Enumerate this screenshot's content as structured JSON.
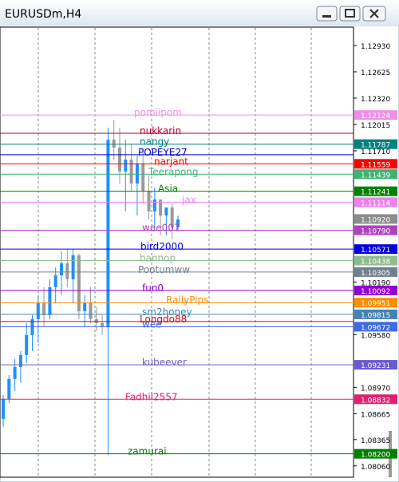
{
  "chart_data": {
    "type": "candlestick",
    "title": "EURUSDm,H4",
    "candles": {
      "open": [
        1.08605,
        1.08836,
        1.09067,
        1.09205,
        1.09344,
        1.09575,
        1.0976,
        1.09945,
        1.09806,
        1.1013,
        1.10268,
        1.10407,
        1.10222,
        1.10499,
        1.09852,
        1.09945,
        1.0976,
        1.09714,
        1.09667,
        1.11839,
        1.11747,
        1.1147,
        1.11608,
        1.11331,
        1.11562,
        1.11239,
        1.11008,
        1.11146,
        1.10961,
        1.11054,
        1.10823
      ],
      "high": [
        1.08882,
        1.09113,
        1.09299,
        1.0939,
        1.09714,
        1.09806,
        1.10037,
        1.1013,
        1.10222,
        1.10361,
        1.10546,
        1.10573,
        1.10573,
        1.10518,
        1.10037,
        1.1013,
        1.09899,
        1.09806,
        1.11978,
        1.1207,
        1.11978,
        1.11839,
        1.11793,
        1.11655,
        1.11747,
        1.11424,
        1.11285,
        1.11146,
        1.11054,
        1.111,
        1.10961
      ],
      "low": [
        1.08512,
        1.08789,
        1.08928,
        1.09021,
        1.09252,
        1.0939,
        1.09483,
        1.09667,
        1.0976,
        1.09945,
        1.10037,
        1.1013,
        1.09945,
        1.0976,
        1.09667,
        1.09714,
        1.09621,
        1.09575,
        1.08189,
        1.11608,
        1.11331,
        1.11008,
        1.11239,
        1.10961,
        1.111,
        1.10915,
        1.10777,
        1.1073,
        1.1073,
        1.10684,
        1.10777
      ],
      "close": [
        1.08836,
        1.09067,
        1.09205,
        1.09344,
        1.09575,
        1.0976,
        1.09945,
        1.09806,
        1.1013,
        1.10268,
        1.10407,
        1.10222,
        1.10499,
        1.09852,
        1.09945,
        1.0976,
        1.09714,
        1.09667,
        1.11839,
        1.11747,
        1.1147,
        1.11608,
        1.11331,
        1.11562,
        1.11239,
        1.11008,
        1.11146,
        1.10961,
        1.11054,
        1.10823,
        1.10915
      ]
    },
    "bull_color": "#1e90ff",
    "bear_color": "#9a9a9a",
    "ylim": [
      1.0791,
      1.13161
    ],
    "yticks": [
      {
        "value": 1.1293,
        "label": "1.12930"
      },
      {
        "value": 1.12625,
        "label": "1.12625"
      },
      {
        "value": 1.1232,
        "label": "1.12320"
      },
      {
        "value": 1.12015,
        "label": "1.12015"
      },
      {
        "value": 1.1171,
        "label": "1.11710"
      },
      {
        "value": 1.1019,
        "label": "1.10190"
      },
      {
        "value": 1.0958,
        "label": "1.09580"
      },
      {
        "value": 1.0897,
        "label": "1.08970"
      },
      {
        "value": 1.08665,
        "label": "1.08665"
      },
      {
        "value": 1.08365,
        "label": "1.08365"
      },
      {
        "value": 1.0806,
        "label": "1.08060"
      }
    ],
    "bid": {
      "value": 1.1092,
      "label": "1.10920",
      "color": "#8c8c8c"
    },
    "levels": [
      {
        "name": "pomiipom",
        "value": 1.12124,
        "color": "#ee90e6",
        "tag": true
      },
      {
        "name": "nukkarin",
        "value": 1.11913,
        "color": "#b0002a",
        "tag": false
      },
      {
        "name": "nangy",
        "value": 1.11787,
        "color": "#008080",
        "tag": true
      },
      {
        "name": "POPEYE27",
        "value": 1.11664,
        "color": "#0000c8",
        "tag": false
      },
      {
        "name": "narjant",
        "value": 1.11559,
        "color": "#ff0000",
        "tag": true
      },
      {
        "name": "Teerapong",
        "value": 1.11439,
        "color": "#3cb371",
        "tag": true
      },
      {
        "name": "Asia",
        "value": 1.11241,
        "color": "#008000",
        "tag": true
      },
      {
        "name": "jax",
        "value": 1.11114,
        "color": "#ee82ee",
        "tag": true
      },
      {
        "name": "wee007",
        "value": 1.1079,
        "value_label": "1.10790",
        "color": "#b040c0",
        "tag": true
      },
      {
        "name": "bird2000",
        "value": 1.10571,
        "color": "#0000e0",
        "tag": true
      },
      {
        "name": "bannop",
        "value": 1.10438,
        "color": "#8fbc8f",
        "tag": true
      },
      {
        "name": "Pootumww",
        "value": 1.10305,
        "color": "#708090",
        "tag": true
      },
      {
        "name": "fun0",
        "value": 1.10092,
        "color": "#9400d3",
        "tag": true
      },
      {
        "name": "RallyPips",
        "value": 1.09951,
        "color": "#ff8c00",
        "tag": true
      },
      {
        "name": "sm2honey",
        "value": 1.09815,
        "color": "#4682b4",
        "tag": true
      },
      {
        "name": "Longdo88",
        "value": 1.09732,
        "color": "#e00000",
        "tag": false
      },
      {
        "name": "wee",
        "value": 1.09672,
        "color": "#4169e1",
        "tag": true
      },
      {
        "name": "kubeever",
        "value": 1.09231,
        "color": "#6a5acd",
        "tag": true
      },
      {
        "name": "Fadhil2557",
        "value": 1.08832,
        "color": "#e0206e",
        "tag": true
      },
      {
        "name": "zamurai",
        "value": 1.082,
        "value_label": "1.08200",
        "color": "#008000",
        "tag": true
      }
    ]
  }
}
